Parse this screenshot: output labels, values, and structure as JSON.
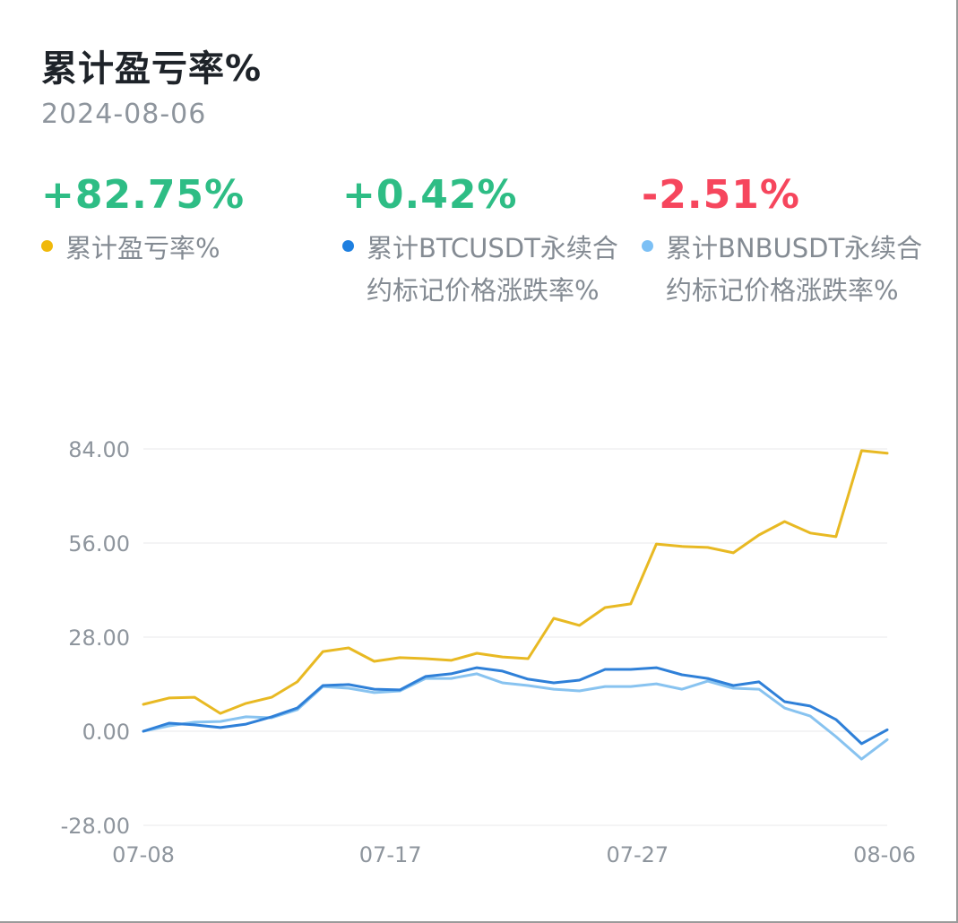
{
  "header": {
    "title": "累计盈亏率%",
    "date": "2024-08-06"
  },
  "stats": [
    {
      "value": "+82.75%",
      "value_color": "#2ebd85",
      "label": "累计盈亏率%",
      "dot_color": "#f0b90b"
    },
    {
      "value": "+0.42%",
      "value_color": "#2ebd85",
      "label": "累计BTCUSDT永续合约标记价格涨跌率%",
      "dot_color": "#1e7fe0"
    },
    {
      "value": "-2.51%",
      "value_color": "#f6465d",
      "label": "累计BNBUSDT永续合约标记价格涨跌率%",
      "dot_color": "#7cc0f5"
    }
  ],
  "chart_data": {
    "type": "line",
    "title": "累计盈亏率%",
    "xlabel": "",
    "ylabel": "",
    "ylim": [
      -28,
      84
    ],
    "y_ticks": [
      "84.00",
      "56.00",
      "28.00",
      "0.00",
      "-28.00"
    ],
    "y_tick_values": [
      84,
      56,
      28,
      0,
      -28
    ],
    "x_tick_labels": [
      "07-08",
      "07-17",
      "07-27",
      "08-06"
    ],
    "grid": true,
    "legend_position": "top",
    "x": [
      "07-08",
      "07-09",
      "07-10",
      "07-11",
      "07-12",
      "07-13",
      "07-14",
      "07-15",
      "07-16",
      "07-17",
      "07-18",
      "07-19",
      "07-20",
      "07-21",
      "07-22",
      "07-23",
      "07-24",
      "07-25",
      "07-26",
      "07-27",
      "07-28",
      "07-29",
      "07-30",
      "07-31",
      "08-01",
      "08-02",
      "08-03",
      "08-04",
      "08-05",
      "08-06"
    ],
    "series": [
      {
        "name": "累计盈亏率%",
        "color": "#e8b923",
        "values": [
          8.0,
          9.9,
          10.1,
          5.3,
          8.3,
          10.1,
          14.7,
          23.7,
          24.8,
          20.8,
          21.9,
          21.6,
          21.1,
          23.2,
          22.1,
          21.6,
          33.6,
          31.5,
          36.8,
          37.9,
          55.7,
          55.0,
          54.7,
          53.1,
          58.4,
          62.4,
          59.0,
          57.9,
          83.5,
          82.75
        ]
      },
      {
        "name": "累计BTCUSDT永续合约标记价格涨跌率%",
        "color": "#2f80d8",
        "values": [
          0.0,
          2.4,
          1.9,
          1.1,
          2.1,
          4.3,
          6.9,
          13.6,
          13.9,
          12.5,
          12.3,
          16.3,
          17.1,
          18.9,
          17.9,
          15.5,
          14.4,
          15.2,
          18.4,
          18.4,
          18.9,
          16.8,
          15.7,
          13.6,
          14.7,
          8.8,
          7.5,
          3.5,
          -3.7,
          0.42
        ]
      },
      {
        "name": "累计BNBUSDT永续合约标记价格涨跌率%",
        "color": "#88c3f0",
        "values": [
          0.0,
          1.6,
          2.7,
          2.9,
          4.3,
          4.0,
          6.4,
          13.3,
          12.8,
          11.5,
          12.0,
          15.7,
          15.7,
          17.1,
          14.4,
          13.6,
          12.5,
          12.0,
          13.3,
          13.3,
          14.1,
          12.5,
          14.9,
          12.8,
          12.5,
          6.9,
          4.5,
          -1.6,
          -8.3,
          -2.51
        ]
      }
    ]
  }
}
